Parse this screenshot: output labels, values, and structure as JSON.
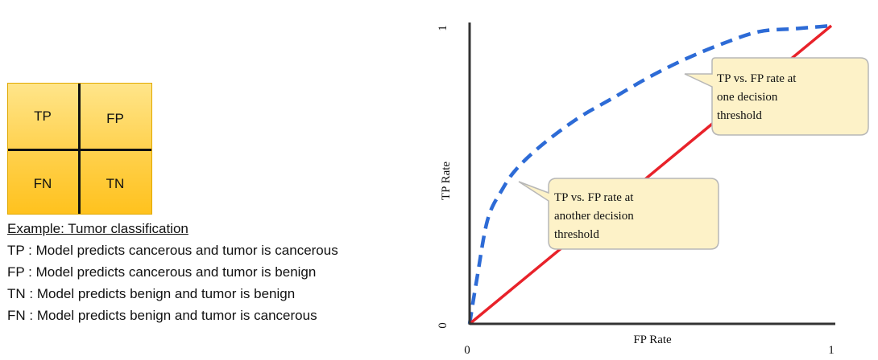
{
  "matrix": {
    "tp": "TP",
    "fp": "FP",
    "fn": "FN",
    "tn": "TN"
  },
  "legend": {
    "title": "Example: Tumor classification",
    "lines": [
      "TP : Model predicts cancerous and tumor is cancerous",
      "FP : Model predicts cancerous and tumor is benign",
      "TN : Model predicts benign and tumor is benign",
      "FN : Model predicts benign and tumor is cancerous"
    ]
  },
  "chart_data": {
    "type": "line",
    "xlabel": "FP Rate",
    "ylabel": "TP Rate",
    "xlim": [
      0,
      1
    ],
    "ylim": [
      0,
      1
    ],
    "x_ticks": [
      "0",
      "1"
    ],
    "y_ticks": [
      "0",
      "1"
    ],
    "grid": false,
    "series": [
      {
        "style": "dashed",
        "color": "#2d6bd6",
        "points": [
          [
            0,
            0
          ],
          [
            0.02,
            0.15
          ],
          [
            0.05,
            0.35
          ],
          [
            0.09,
            0.45
          ],
          [
            0.13,
            0.52
          ],
          [
            0.2,
            0.6
          ],
          [
            0.3,
            0.69
          ],
          [
            0.4,
            0.76
          ],
          [
            0.5,
            0.83
          ],
          [
            0.6,
            0.89
          ],
          [
            0.7,
            0.94
          ],
          [
            0.8,
            0.98
          ],
          [
            0.9,
            0.99
          ],
          [
            1,
            1
          ]
        ]
      },
      {
        "style": "solid",
        "color": "#e8222a",
        "points": [
          [
            0,
            0
          ],
          [
            1,
            1
          ]
        ]
      }
    ],
    "annotations": [
      {
        "lines": [
          "TP vs. FP rate at",
          "one decision",
          "threshold"
        ],
        "points_to": [
          0.68,
          0.93
        ]
      },
      {
        "lines": [
          "TP vs. FP rate at",
          "another decision",
          "threshold"
        ],
        "points_to": [
          0.14,
          0.5
        ]
      }
    ]
  }
}
